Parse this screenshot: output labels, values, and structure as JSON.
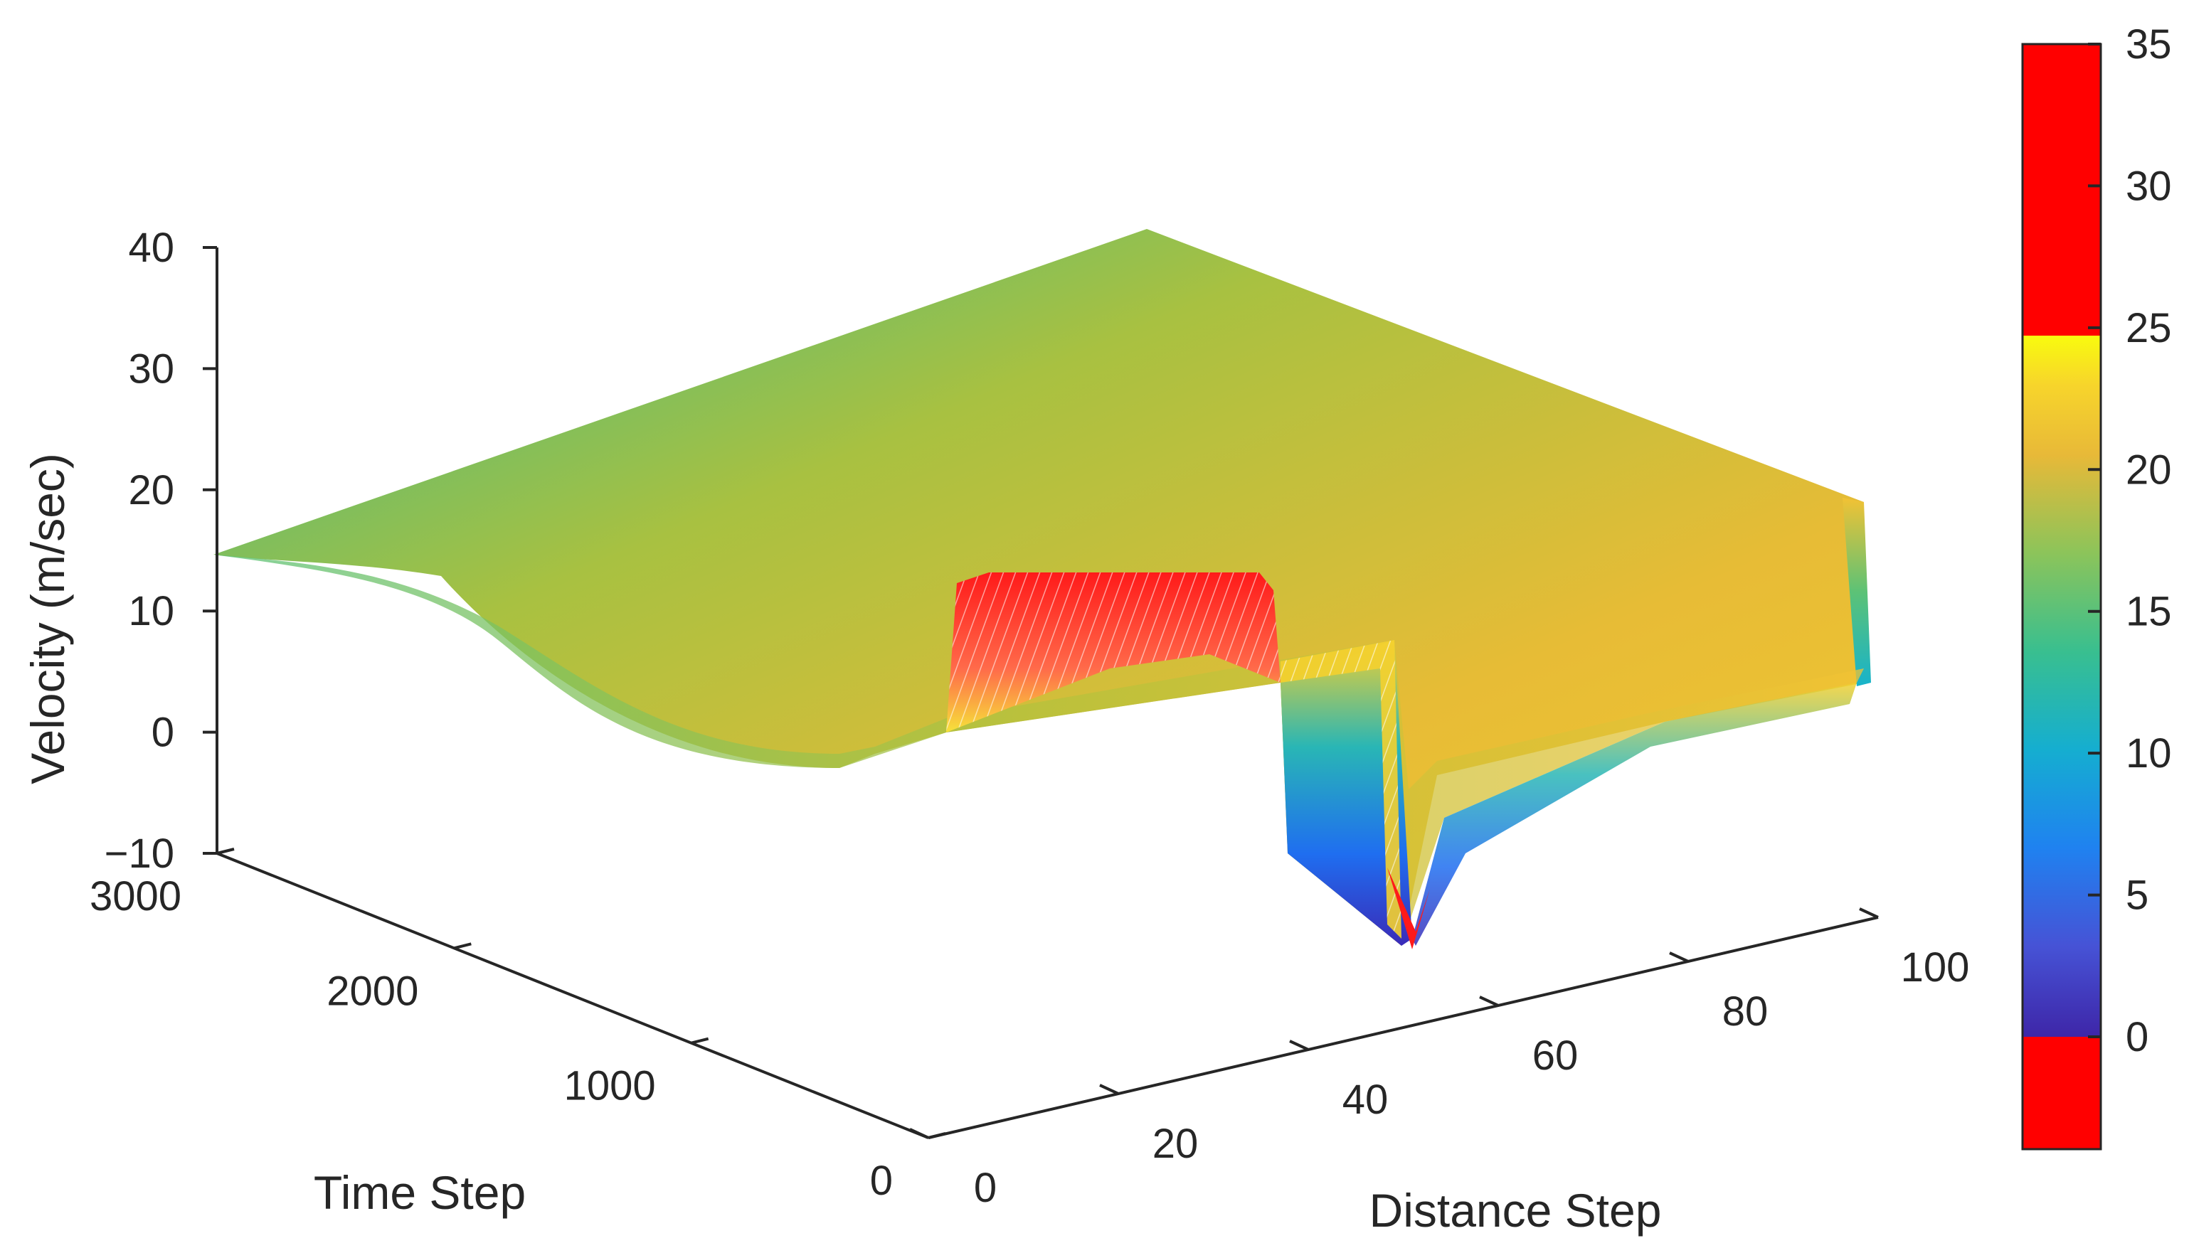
{
  "chart_data": {
    "type": "surface",
    "xlabel": "Distance Step",
    "ylabel": "Time Step",
    "zlabel": "Velocity (m/sec)",
    "xlim": [
      0,
      100
    ],
    "ylim": [
      0,
      3000
    ],
    "zlim": [
      -10,
      40
    ],
    "x_ticks": [
      "0",
      "20",
      "40",
      "60",
      "80",
      "100"
    ],
    "y_ticks": [
      "0",
      "1000",
      "2000",
      "3000"
    ],
    "z_ticks": [
      "−10",
      "0",
      "10",
      "20",
      "30",
      "40"
    ],
    "colorbar": {
      "ticks": [
        "0",
        "5",
        "10",
        "15",
        "20",
        "25",
        "30",
        "35"
      ],
      "range": [
        -4,
        35
      ],
      "under_color": "#ff0000",
      "over_threshold": 25,
      "over_color": "#ff0000",
      "colormap": "parula"
    },
    "surface_profiles": [
      {
        "time_step": 3000,
        "distance": [
          0,
          20,
          40,
          60,
          80,
          100
        ],
        "velocity": [
          14.5,
          17,
          19,
          21,
          23,
          25
        ]
      },
      {
        "time_step": 0,
        "distance": [
          0,
          20,
          37,
          40,
          44,
          60,
          80,
          100
        ],
        "velocity": [
          15.5,
          20,
          20,
          33,
          3,
          7,
          12,
          13
        ]
      }
    ],
    "colors": {
      "axis": "#262626",
      "background": "#ffffff"
    }
  }
}
